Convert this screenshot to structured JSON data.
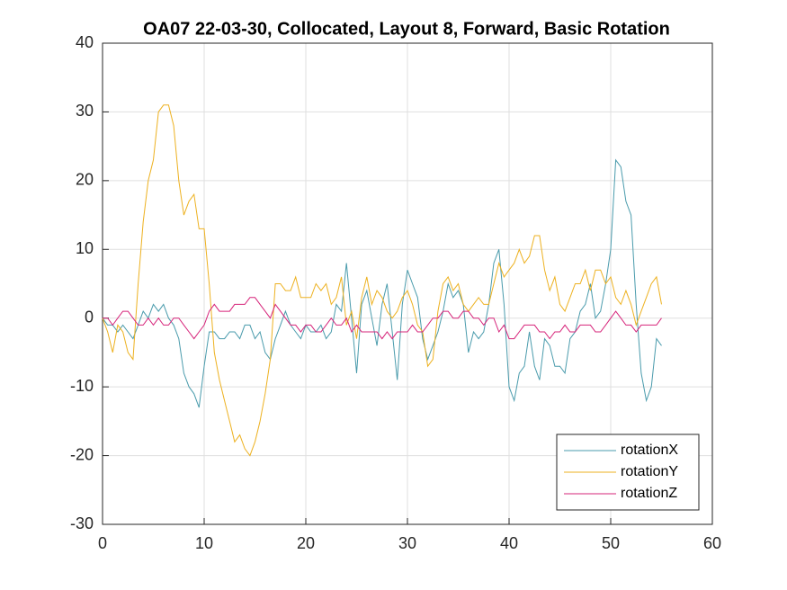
{
  "chart_data": {
    "type": "line",
    "title": "OA07 22-03-30, Collocated, Layout 8, Forward, Basic Rotation",
    "x": [
      0,
      0.5,
      1,
      1.5,
      2,
      2.5,
      3,
      3.5,
      4,
      4.5,
      5,
      5.5,
      6,
      6.5,
      7,
      7.5,
      8,
      8.5,
      9,
      9.5,
      10,
      10.5,
      11,
      11.5,
      12,
      12.5,
      13,
      13.5,
      14,
      14.5,
      15,
      15.5,
      16,
      16.5,
      17,
      17.5,
      18,
      18.5,
      19,
      19.5,
      20,
      20.5,
      21,
      21.5,
      22,
      22.5,
      23,
      23.5,
      24,
      24.5,
      25,
      25.5,
      26,
      26.5,
      27,
      27.5,
      28,
      28.5,
      29,
      29.5,
      30,
      30.5,
      31,
      31.5,
      32,
      32.5,
      33,
      33.5,
      34,
      34.5,
      35,
      35.5,
      36,
      36.5,
      37,
      37.5,
      38,
      38.5,
      39,
      39.5,
      40,
      40.5,
      41,
      41.5,
      42,
      42.5,
      43,
      43.5,
      44,
      44.5,
      45,
      45.5,
      46,
      46.5,
      47,
      47.5,
      48,
      48.5,
      49,
      49.5,
      50,
      50.5,
      51,
      51.5,
      52,
      52.5,
      53,
      53.5,
      54,
      54.5,
      55
    ],
    "series": [
      {
        "name": "rotationX",
        "color": "#4a9bac",
        "values": [
          0,
          -1,
          -1,
          -2,
          -1,
          -2,
          -3,
          -1,
          1,
          0,
          2,
          1,
          2,
          0,
          -1,
          -3,
          -8,
          -10,
          -11,
          -13,
          -7,
          -2,
          -2,
          -3,
          -3,
          -2,
          -2,
          -3,
          -1,
          -1,
          -3,
          -2,
          -5,
          -6,
          -3,
          -1,
          1,
          -1,
          -2,
          -3,
          -1,
          -2,
          -2,
          -1,
          -3,
          -2,
          2,
          1,
          8,
          0,
          -8,
          2,
          4,
          0,
          -4,
          2,
          5,
          -2,
          -9,
          2,
          7,
          5,
          3,
          -3,
          -6,
          -4,
          -2,
          1,
          5,
          3,
          4,
          2,
          -5,
          -2,
          -3,
          -2,
          2,
          8,
          10,
          2,
          -10,
          -12,
          -8,
          -7,
          -2,
          -7,
          -9,
          -3,
          -4,
          -7,
          -7,
          -8,
          -3,
          -2,
          1,
          2,
          5,
          0,
          1,
          5,
          10,
          23,
          22,
          17,
          15,
          2,
          -8,
          -12,
          -10,
          -3,
          -4
        ]
      },
      {
        "name": "rotationY",
        "color": "#edb120",
        "values": [
          0,
          -2,
          -5,
          -1,
          -2,
          -5,
          -6,
          5,
          14,
          20,
          23,
          30,
          31,
          31,
          28,
          20,
          15,
          17,
          18,
          13,
          13,
          5,
          -5,
          -9,
          -12,
          -15,
          -18,
          -17,
          -19,
          -20,
          -18,
          -15,
          -11,
          -6,
          5,
          5,
          4,
          4,
          6,
          3,
          3,
          3,
          5,
          4,
          5,
          2,
          3,
          6,
          -1,
          1,
          -3,
          3,
          6,
          2,
          4,
          3,
          1,
          0,
          1,
          3,
          4,
          2,
          -1,
          -2,
          -7,
          -6,
          1,
          5,
          6,
          4,
          5,
          2,
          1,
          2,
          3,
          2,
          2,
          5,
          8,
          6,
          7,
          8,
          10,
          8,
          9,
          12,
          12,
          7,
          4,
          6,
          2,
          1,
          3,
          5,
          5,
          7,
          4,
          7,
          7,
          5,
          6,
          3,
          2,
          4,
          2,
          -1,
          1,
          3,
          5,
          6,
          2
        ]
      },
      {
        "name": "rotationZ",
        "color": "#d6247a",
        "values": [
          0,
          0,
          -1,
          0,
          1,
          1,
          0,
          -1,
          -1,
          0,
          -1,
          0,
          -1,
          -1,
          0,
          0,
          -1,
          -2,
          -3,
          -2,
          -1,
          1,
          2,
          1,
          1,
          1,
          2,
          2,
          2,
          3,
          3,
          2,
          1,
          0,
          2,
          1,
          0,
          -1,
          -1,
          -2,
          -1,
          -1,
          -2,
          -2,
          -1,
          0,
          -1,
          -1,
          0,
          -2,
          -1,
          -2,
          -2,
          -2,
          -2,
          -3,
          -2,
          -3,
          -2,
          -2,
          -2,
          -1,
          -2,
          -2,
          -1,
          0,
          0,
          1,
          1,
          0,
          0,
          1,
          1,
          0,
          0,
          -1,
          0,
          0,
          -2,
          -1,
          -3,
          -3,
          -2,
          -1,
          -1,
          -1,
          -2,
          -2,
          -3,
          -2,
          -2,
          -1,
          -2,
          -2,
          -1,
          -1,
          -1,
          -2,
          -2,
          -1,
          0,
          1,
          0,
          -1,
          -1,
          -2,
          -1,
          -1,
          -1,
          -1,
          0
        ]
      }
    ],
    "xlim": [
      0,
      60
    ],
    "xticks": [
      0,
      10,
      20,
      30,
      40,
      50,
      60
    ],
    "ylim": [
      -30,
      40
    ],
    "yticks": [
      -30,
      -20,
      -10,
      0,
      10,
      20,
      30,
      40
    ],
    "grid": true,
    "legend": "southeast"
  }
}
